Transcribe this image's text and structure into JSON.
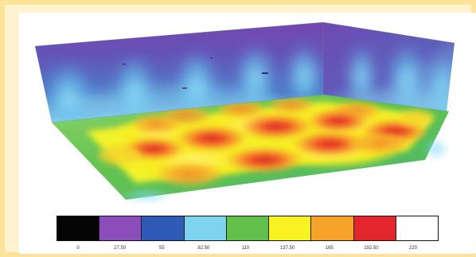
{
  "legend": {
    "labels": [
      "0",
      "27.50",
      "55",
      "82.50",
      "110",
      "137.50",
      "165",
      "192.50",
      "220"
    ],
    "colors": [
      "#050505",
      "#8a4dba",
      "#2f5ab7",
      "#7ed4ee",
      "#63c04b",
      "#f8f223",
      "#f6a32a",
      "#e3262d",
      "#ffffff"
    ]
  },
  "scene": {
    "surfaces": [
      "back-wall",
      "right-wall",
      "floor"
    ]
  }
}
